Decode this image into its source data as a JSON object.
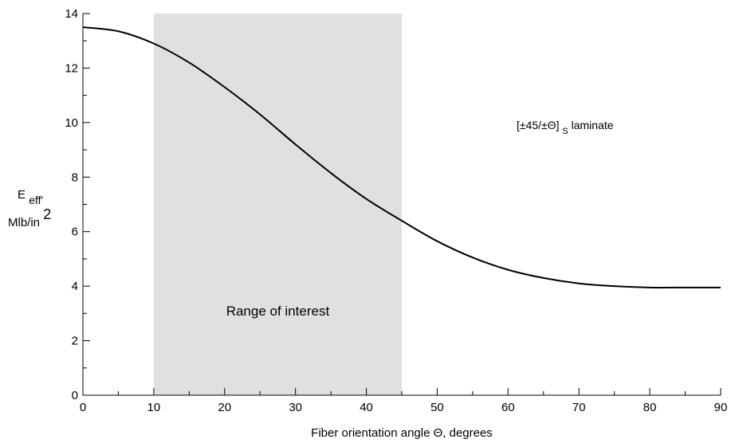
{
  "chart_data": {
    "type": "line",
    "xlabel": "Fiber orientation angle Θ, degrees",
    "ylabel": {
      "main": "E",
      "sub": "eff'",
      "units_base": "Mlb/in",
      "units_exp": "2"
    },
    "xlim": [
      0,
      90
    ],
    "ylim": [
      0,
      14
    ],
    "x_ticks": [
      0,
      10,
      20,
      30,
      40,
      50,
      60,
      70,
      80,
      90
    ],
    "y_ticks": [
      0,
      2,
      4,
      6,
      8,
      10,
      12,
      14
    ],
    "x_minor_step": 5,
    "y_minor_step": 1,
    "grid": false,
    "shaded_region": {
      "x_start": 10,
      "x_end": 45,
      "label": "Range of interest",
      "color": "#e0e0e0"
    },
    "annotation": {
      "prefix": "[±45/±Θ]",
      "sub": "S",
      "suffix": " laminate"
    },
    "series": [
      {
        "color": "#000000",
        "x": [
          0,
          5,
          10,
          15,
          20,
          25,
          30,
          35,
          40,
          45,
          50,
          55,
          60,
          65,
          70,
          75,
          80,
          85,
          90
        ],
        "y": [
          13.5,
          13.35,
          12.9,
          12.2,
          11.3,
          10.3,
          9.2,
          8.15,
          7.2,
          6.4,
          5.65,
          5.05,
          4.6,
          4.3,
          4.1,
          4.0,
          3.95,
          3.95,
          3.95
        ]
      }
    ]
  }
}
